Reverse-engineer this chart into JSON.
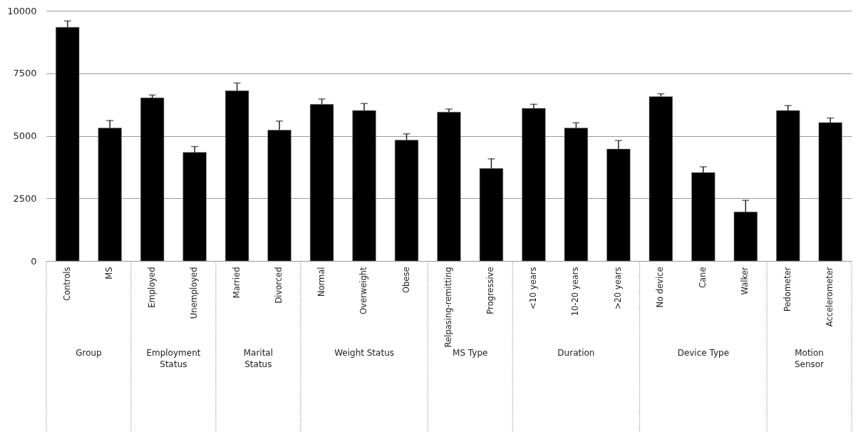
{
  "chart_data": {
    "type": "bar",
    "categories": [
      "Controls",
      "MS",
      "Employed",
      "Unemployed",
      "Married",
      "Divorced",
      "Normal",
      "Overweight",
      "Obese",
      "Relpasing-remitting",
      "Progressive",
      "<10 years",
      "10-20 years",
      ">20 years",
      "No device",
      "Cane",
      "Walker",
      "Pedometer",
      "Accelerometer"
    ],
    "values": [
      9340,
      5310,
      6520,
      4340,
      6800,
      5230,
      6260,
      6010,
      4830,
      5950,
      3700,
      6100,
      5310,
      4470,
      6570,
      3530,
      1960,
      6010,
      5530
    ],
    "errors": [
      [
        9340,
        9590
      ],
      [
        5310,
        5610
      ],
      [
        6520,
        6630
      ],
      [
        4340,
        4570
      ],
      [
        6800,
        7110
      ],
      [
        5230,
        5590
      ],
      [
        6260,
        6470
      ],
      [
        6010,
        6290
      ],
      [
        4830,
        5080
      ],
      [
        5950,
        6070
      ],
      [
        3700,
        4080
      ],
      [
        6100,
        6260
      ],
      [
        5310,
        5520
      ],
      [
        4470,
        4810
      ],
      [
        6570,
        6680
      ],
      [
        3530,
        3760
      ],
      [
        1960,
        2420
      ],
      [
        6010,
        6210
      ],
      [
        5530,
        5710
      ]
    ],
    "color": "#000000",
    "ylim": [
      0,
      10000
    ],
    "yticks": [
      0,
      2500,
      5000,
      7500,
      10000
    ],
    "grid": "y",
    "annotations": [
      "Group",
      "Employment Status",
      "Marital Status",
      "Weight Status",
      "MS Type",
      "Duration",
      "Device Type",
      "Motion Sensor"
    ]
  }
}
